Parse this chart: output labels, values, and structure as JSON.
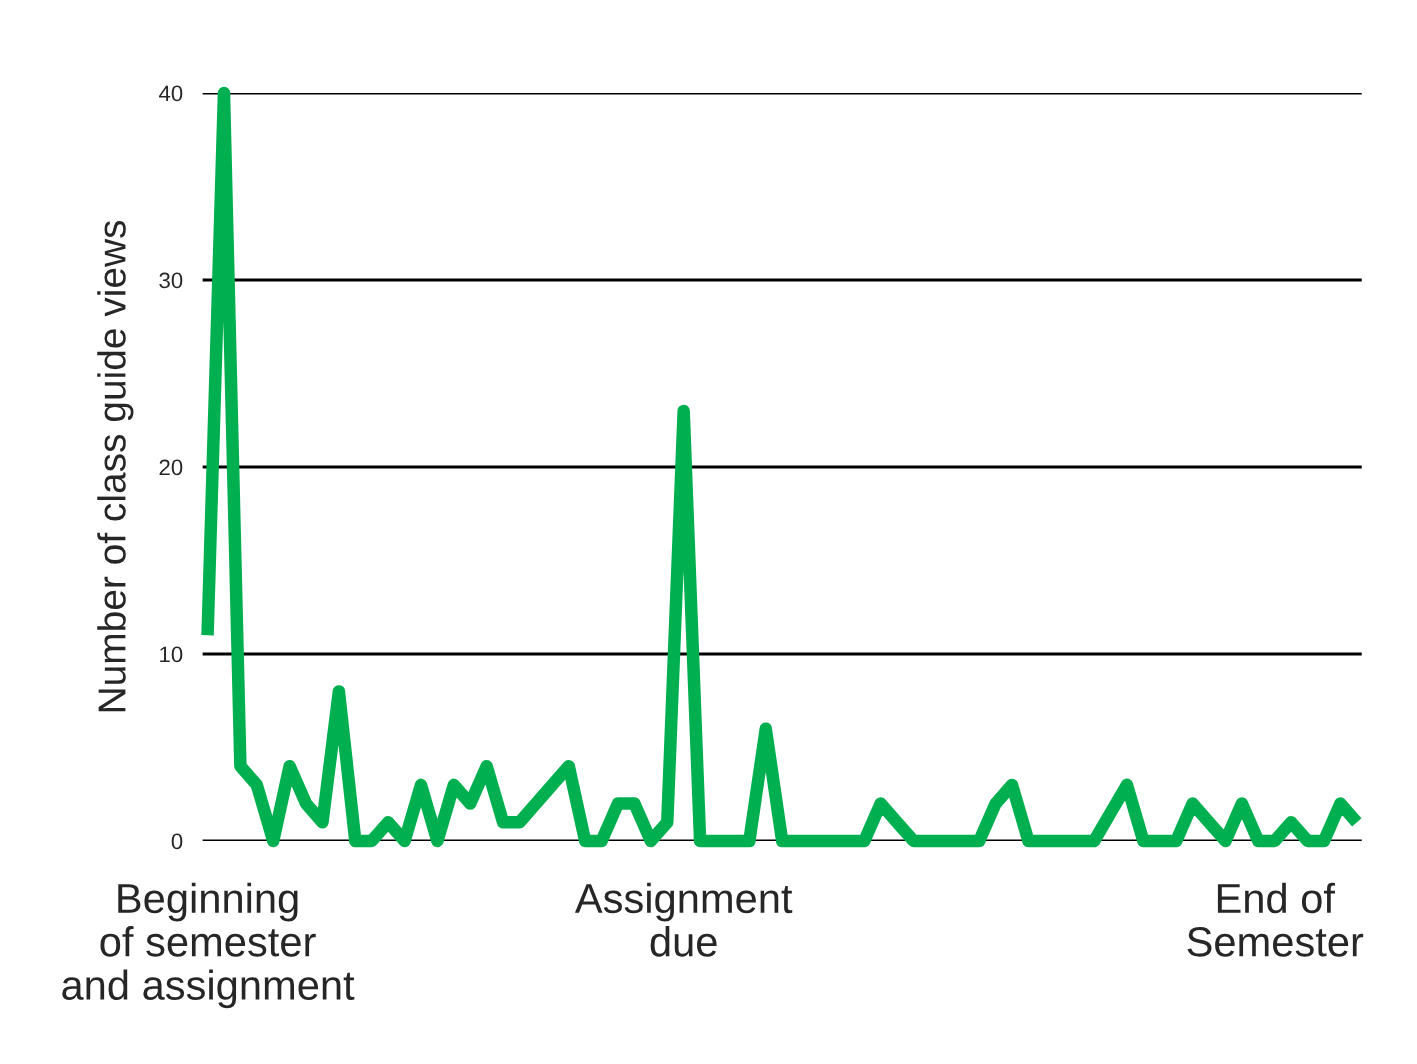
{
  "chart_data": {
    "type": "line",
    "ylabel": "Number of class guide views",
    "categories": [
      "Beginning\nof semester\nand assignment",
      null,
      null,
      null,
      null,
      null,
      null,
      null,
      null,
      null,
      null,
      null,
      null,
      null,
      null,
      null,
      null,
      null,
      null,
      null,
      null,
      null,
      null,
      null,
      null,
      null,
      null,
      null,
      null,
      "Assignment\ndue",
      null,
      null,
      null,
      null,
      null,
      null,
      null,
      null,
      null,
      null,
      null,
      null,
      null,
      null,
      null,
      null,
      null,
      null,
      null,
      null,
      null,
      null,
      null,
      null,
      null,
      null,
      null,
      null,
      null,
      null,
      null,
      null,
      null,
      null,
      null,
      "End of\nSemester",
      null,
      null,
      null,
      null,
      null
    ],
    "series": [
      {
        "color": "#00b050",
        "values": [
          11,
          40,
          4,
          3,
          0,
          4,
          2,
          1,
          8,
          0,
          0,
          1,
          0,
          3,
          0,
          3,
          2,
          4,
          1,
          1,
          2,
          3,
          4,
          0,
          0,
          2,
          2,
          0,
          1,
          23,
          0,
          0,
          0,
          0,
          6,
          0,
          0,
          0,
          0,
          0,
          0,
          2,
          1,
          0,
          0,
          0,
          0,
          0,
          2,
          3,
          0,
          0,
          0,
          0,
          0,
          1.5,
          3,
          0,
          0,
          0,
          2,
          1,
          0,
          2,
          0,
          0,
          1,
          0,
          0,
          2,
          1
        ]
      }
    ],
    "ylim": [
      0,
      40
    ],
    "yticks": [
      0,
      10,
      20,
      30,
      40
    ],
    "grid": "y",
    "marker": "none",
    "line_style": "solid"
  }
}
